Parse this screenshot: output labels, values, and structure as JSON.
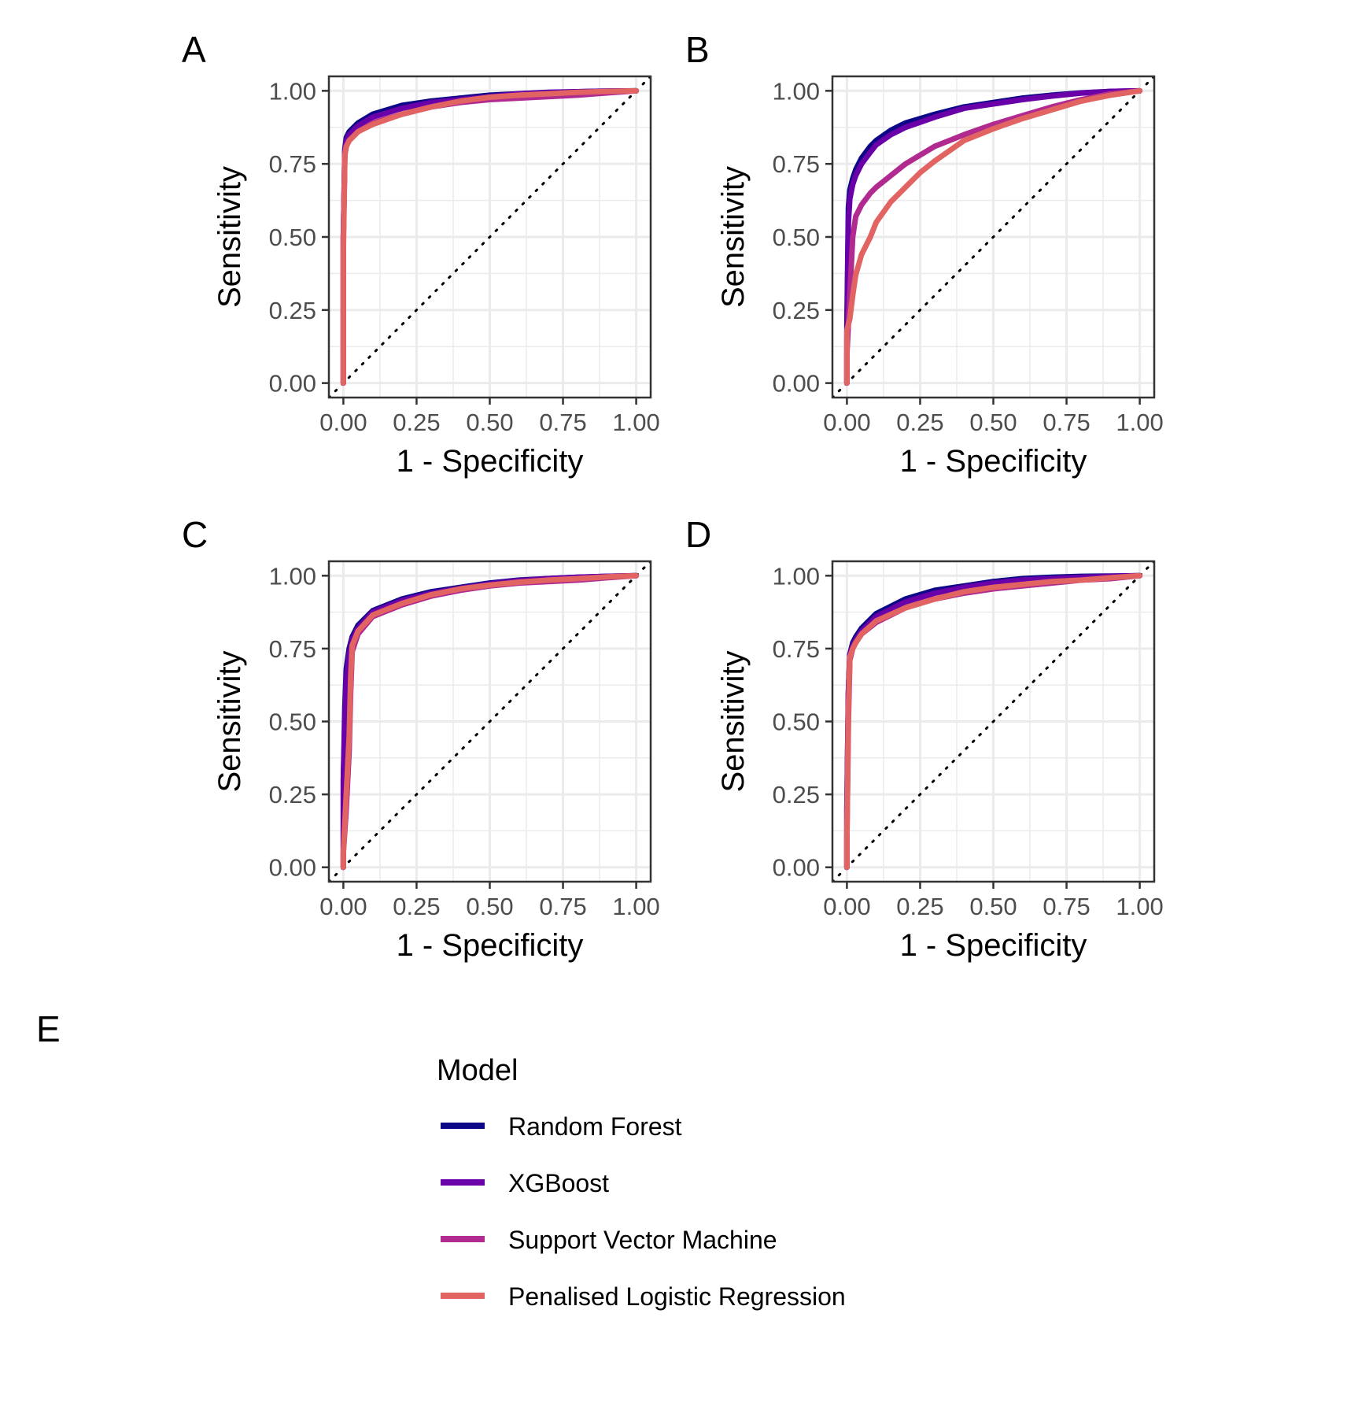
{
  "chart_data": [
    {
      "panel": "A",
      "type": "line",
      "xlabel": "1 - Specificity",
      "ylabel": "Sensitivity",
      "xlim": [
        0,
        1
      ],
      "ylim": [
        0,
        1
      ],
      "x_ticks": [
        "0.00",
        "0.25",
        "0.50",
        "0.75",
        "1.00"
      ],
      "y_ticks": [
        "0.00",
        "0.25",
        "0.50",
        "0.75",
        "1.00"
      ],
      "reference_line": "diagonal dotted",
      "grid": true,
      "series": [
        {
          "name": "Random Forest",
          "x": [
            0,
            0,
            0.005,
            0.01,
            0.02,
            0.05,
            0.1,
            0.2,
            0.3,
            0.4,
            0.5,
            0.6,
            0.7,
            0.8,
            0.9,
            1.0
          ],
          "y": [
            0,
            0.5,
            0.8,
            0.84,
            0.86,
            0.89,
            0.92,
            0.95,
            0.965,
            0.975,
            0.985,
            0.99,
            0.995,
            0.997,
            0.999,
            1.0
          ]
        },
        {
          "name": "XGBoost",
          "x": [
            0,
            0,
            0.005,
            0.01,
            0.02,
            0.05,
            0.1,
            0.2,
            0.3,
            0.4,
            0.5,
            0.6,
            0.7,
            0.8,
            0.9,
            1.0
          ],
          "y": [
            0,
            0.5,
            0.8,
            0.83,
            0.85,
            0.88,
            0.91,
            0.94,
            0.96,
            0.97,
            0.98,
            0.99,
            0.994,
            0.997,
            0.999,
            1.0
          ]
        },
        {
          "name": "Support Vector Machine",
          "x": [
            0,
            0,
            0.005,
            0.01,
            0.02,
            0.05,
            0.1,
            0.2,
            0.3,
            0.4,
            0.5,
            0.6,
            0.7,
            0.8,
            0.9,
            1.0
          ],
          "y": [
            0,
            0.5,
            0.78,
            0.81,
            0.83,
            0.86,
            0.89,
            0.92,
            0.945,
            0.96,
            0.97,
            0.975,
            0.98,
            0.985,
            0.993,
            1.0
          ]
        },
        {
          "name": "Penalised Logistic Regression",
          "x": [
            0,
            0,
            0.005,
            0.01,
            0.02,
            0.05,
            0.1,
            0.2,
            0.3,
            0.4,
            0.5,
            0.6,
            0.7,
            0.8,
            0.9,
            1.0
          ],
          "y": [
            0,
            0.45,
            0.78,
            0.81,
            0.83,
            0.86,
            0.885,
            0.92,
            0.945,
            0.965,
            0.978,
            0.985,
            0.99,
            0.995,
            0.998,
            1.0
          ]
        }
      ]
    },
    {
      "panel": "B",
      "type": "line",
      "xlabel": "1 - Specificity",
      "ylabel": "Sensitivity",
      "xlim": [
        0,
        1
      ],
      "ylim": [
        0,
        1
      ],
      "x_ticks": [
        "0.00",
        "0.25",
        "0.50",
        "0.75",
        "1.00"
      ],
      "y_ticks": [
        "0.00",
        "0.25",
        "0.50",
        "0.75",
        "1.00"
      ],
      "reference_line": "diagonal dotted",
      "grid": true,
      "series": [
        {
          "name": "Random Forest",
          "x": [
            0,
            0,
            0.005,
            0.01,
            0.02,
            0.03,
            0.05,
            0.08,
            0.1,
            0.15,
            0.2,
            0.3,
            0.4,
            0.5,
            0.6,
            0.7,
            0.8,
            0.9,
            1.0
          ],
          "y": [
            0,
            0.2,
            0.6,
            0.66,
            0.7,
            0.73,
            0.77,
            0.81,
            0.83,
            0.865,
            0.89,
            0.92,
            0.945,
            0.96,
            0.975,
            0.985,
            0.993,
            0.998,
            1.0
          ]
        },
        {
          "name": "XGBoost",
          "x": [
            0,
            0,
            0.005,
            0.01,
            0.02,
            0.03,
            0.05,
            0.08,
            0.1,
            0.15,
            0.2,
            0.3,
            0.4,
            0.5,
            0.6,
            0.7,
            0.8,
            0.9,
            1.0
          ],
          "y": [
            0,
            0.15,
            0.55,
            0.63,
            0.68,
            0.71,
            0.75,
            0.79,
            0.815,
            0.85,
            0.875,
            0.91,
            0.94,
            0.955,
            0.97,
            0.982,
            0.992,
            0.998,
            1.0
          ]
        },
        {
          "name": "Support Vector Machine",
          "x": [
            0,
            0,
            0.01,
            0.02,
            0.03,
            0.05,
            0.08,
            0.1,
            0.15,
            0.2,
            0.25,
            0.3,
            0.4,
            0.5,
            0.6,
            0.7,
            0.8,
            0.9,
            1.0
          ],
          "y": [
            0,
            0.1,
            0.3,
            0.5,
            0.57,
            0.61,
            0.65,
            0.67,
            0.71,
            0.75,
            0.78,
            0.81,
            0.85,
            0.885,
            0.915,
            0.945,
            0.97,
            0.99,
            1.0
          ]
        },
        {
          "name": "Penalised Logistic Regression",
          "x": [
            0,
            0,
            0.01,
            0.02,
            0.03,
            0.05,
            0.08,
            0.1,
            0.15,
            0.2,
            0.25,
            0.3,
            0.4,
            0.5,
            0.6,
            0.7,
            0.8,
            0.9,
            1.0
          ],
          "y": [
            0,
            0.18,
            0.22,
            0.3,
            0.37,
            0.44,
            0.5,
            0.55,
            0.62,
            0.67,
            0.72,
            0.76,
            0.83,
            0.87,
            0.905,
            0.935,
            0.965,
            0.985,
            1.0
          ]
        }
      ]
    },
    {
      "panel": "C",
      "type": "line",
      "xlabel": "1 - Specificity",
      "ylabel": "Sensitivity",
      "xlim": [
        0,
        1
      ],
      "ylim": [
        0,
        1
      ],
      "x_ticks": [
        "0.00",
        "0.25",
        "0.50",
        "0.75",
        "1.00"
      ],
      "y_ticks": [
        "0.00",
        "0.25",
        "0.50",
        "0.75",
        "1.00"
      ],
      "reference_line": "diagonal dotted",
      "grid": true,
      "series": [
        {
          "name": "Random Forest",
          "x": [
            0,
            0,
            0.005,
            0.01,
            0.02,
            0.03,
            0.05,
            0.1,
            0.2,
            0.3,
            0.4,
            0.5,
            0.6,
            0.7,
            0.8,
            0.9,
            1.0
          ],
          "y": [
            0,
            0.3,
            0.55,
            0.68,
            0.75,
            0.79,
            0.83,
            0.88,
            0.92,
            0.945,
            0.96,
            0.975,
            0.985,
            0.99,
            0.995,
            0.998,
            1.0
          ]
        },
        {
          "name": "XGBoost",
          "x": [
            0,
            0,
            0.005,
            0.01,
            0.02,
            0.03,
            0.05,
            0.1,
            0.2,
            0.3,
            0.4,
            0.5,
            0.6,
            0.7,
            0.8,
            0.9,
            1.0
          ],
          "y": [
            0,
            0.3,
            0.5,
            0.65,
            0.73,
            0.78,
            0.82,
            0.875,
            0.915,
            0.94,
            0.957,
            0.972,
            0.983,
            0.99,
            0.995,
            0.998,
            1.0
          ]
        },
        {
          "name": "Support Vector Machine",
          "x": [
            0,
            0,
            0.01,
            0.02,
            0.025,
            0.03,
            0.05,
            0.1,
            0.2,
            0.3,
            0.4,
            0.5,
            0.6,
            0.7,
            0.8,
            0.9,
            1.0
          ],
          "y": [
            0,
            0.05,
            0.2,
            0.4,
            0.6,
            0.74,
            0.8,
            0.86,
            0.9,
            0.93,
            0.95,
            0.965,
            0.975,
            0.98,
            0.985,
            0.993,
            1.0
          ]
        },
        {
          "name": "Penalised Logistic Regression",
          "x": [
            0,
            0,
            0.01,
            0.02,
            0.025,
            0.03,
            0.05,
            0.1,
            0.2,
            0.3,
            0.4,
            0.5,
            0.6,
            0.7,
            0.8,
            0.9,
            1.0
          ],
          "y": [
            0,
            0.05,
            0.25,
            0.45,
            0.65,
            0.76,
            0.81,
            0.865,
            0.905,
            0.935,
            0.955,
            0.968,
            0.978,
            0.985,
            0.99,
            0.996,
            1.0
          ]
        }
      ]
    },
    {
      "panel": "D",
      "type": "line",
      "xlabel": "1 - Specificity",
      "ylabel": "Sensitivity",
      "xlim": [
        0,
        1
      ],
      "ylim": [
        0,
        1
      ],
      "x_ticks": [
        "0.00",
        "0.25",
        "0.50",
        "0.75",
        "1.00"
      ],
      "y_ticks": [
        "0.00",
        "0.25",
        "0.50",
        "0.75",
        "1.00"
      ],
      "reference_line": "diagonal dotted",
      "grid": true,
      "series": [
        {
          "name": "Random Forest",
          "x": [
            0,
            0,
            0.005,
            0.01,
            0.02,
            0.03,
            0.05,
            0.1,
            0.2,
            0.3,
            0.4,
            0.5,
            0.6,
            0.7,
            0.8,
            0.9,
            1.0
          ],
          "y": [
            0,
            0.2,
            0.6,
            0.73,
            0.77,
            0.79,
            0.82,
            0.87,
            0.92,
            0.95,
            0.965,
            0.98,
            0.99,
            0.995,
            0.998,
            0.999,
            1.0
          ]
        },
        {
          "name": "XGBoost",
          "x": [
            0,
            0,
            0.005,
            0.01,
            0.02,
            0.03,
            0.05,
            0.1,
            0.2,
            0.3,
            0.4,
            0.5,
            0.6,
            0.7,
            0.8,
            0.9,
            1.0
          ],
          "y": [
            0,
            0.2,
            0.6,
            0.73,
            0.76,
            0.78,
            0.81,
            0.86,
            0.91,
            0.94,
            0.96,
            0.975,
            0.985,
            0.99,
            0.995,
            0.998,
            1.0
          ]
        },
        {
          "name": "Support Vector Machine",
          "x": [
            0,
            0,
            0.005,
            0.01,
            0.02,
            0.03,
            0.05,
            0.1,
            0.2,
            0.3,
            0.4,
            0.5,
            0.6,
            0.7,
            0.8,
            0.9,
            1.0
          ],
          "y": [
            0,
            0.1,
            0.5,
            0.71,
            0.75,
            0.77,
            0.8,
            0.84,
            0.89,
            0.92,
            0.94,
            0.955,
            0.965,
            0.975,
            0.985,
            0.99,
            1.0
          ]
        },
        {
          "name": "Penalised Logistic Regression",
          "x": [
            0,
            0,
            0.005,
            0.01,
            0.02,
            0.03,
            0.05,
            0.1,
            0.2,
            0.3,
            0.4,
            0.5,
            0.6,
            0.7,
            0.8,
            0.9,
            1.0
          ],
          "y": [
            0,
            0.1,
            0.55,
            0.72,
            0.75,
            0.77,
            0.8,
            0.845,
            0.89,
            0.92,
            0.945,
            0.96,
            0.97,
            0.98,
            0.985,
            0.993,
            1.0
          ]
        }
      ]
    }
  ],
  "legend": {
    "panel": "E",
    "title": "Model",
    "placement": "bottom",
    "items": [
      {
        "label": "Random Forest",
        "color": "#0d0887"
      },
      {
        "label": "XGBoost",
        "color": "#6a00a8"
      },
      {
        "label": "Support Vector Machine",
        "color": "#b12a90"
      },
      {
        "label": "Penalised Logistic Regression",
        "color": "#e16462"
      }
    ]
  },
  "colors": {
    "Random Forest": "#0d0887",
    "XGBoost": "#6a00a8",
    "Support Vector Machine": "#b12a90",
    "Penalised Logistic Regression": "#e16462",
    "grid": "#ebebeb",
    "panel_border": "#333333"
  }
}
